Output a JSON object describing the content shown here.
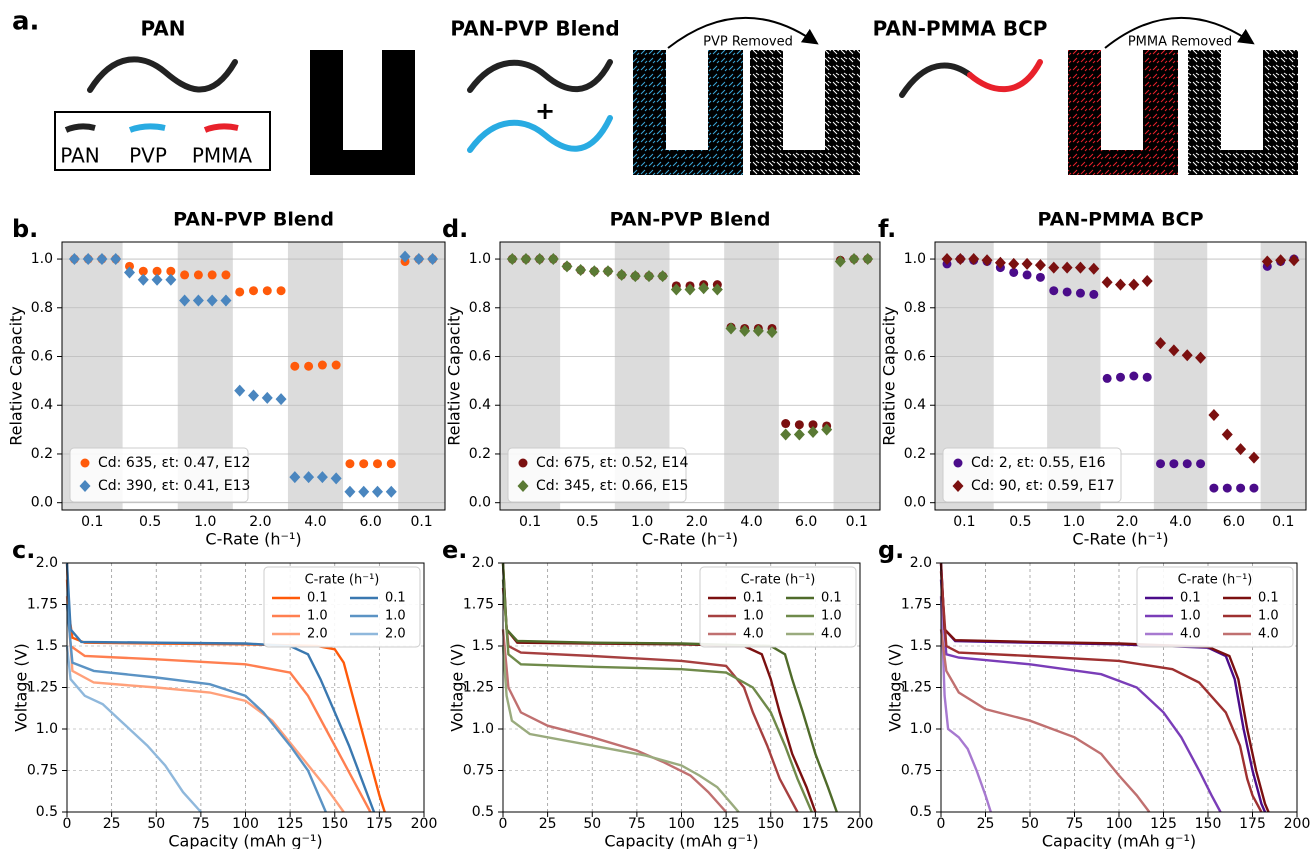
{
  "panel_a": {
    "label": "a.",
    "pan_title": "PAN",
    "blend_title": "PAN-PVP Blend",
    "bcp_title": "PAN-PMMA BCP",
    "plus": "+",
    "pvp_removed": "PVP Removed",
    "pmma_removed": "PMMA Removed",
    "legend": [
      "PAN",
      "PVP",
      "PMMA"
    ]
  },
  "chart_data": [
    {
      "type": "scatter",
      "panel_label": "b.",
      "title": "PAN-PVP Blend",
      "xlabel": "C-Rate (h⁻¹)",
      "ylabel": "Relative Capacity",
      "categories": [
        "0.1",
        null,
        null,
        null,
        "0.5",
        null,
        null,
        null,
        "1.0",
        null,
        null,
        null,
        "2.0",
        null,
        null,
        null,
        "4.0",
        null,
        null,
        null,
        "6.0",
        null,
        null,
        null,
        "0.1",
        null,
        null
      ],
      "series": [
        {
          "name": "Cd: 635, εt: 0.47, E12",
          "color": "#ff5a0a",
          "marker": "circle",
          "values": [
            1.0,
            1.0,
            1.0,
            1.0,
            0.97,
            0.95,
            0.95,
            0.95,
            0.935,
            0.935,
            0.935,
            0.935,
            0.865,
            0.87,
            0.87,
            0.87,
            0.56,
            0.56,
            0.565,
            0.565,
            0.16,
            0.16,
            0.16,
            0.16,
            0.99,
            1.0,
            1.0
          ]
        },
        {
          "name": "Cd: 390, εt: 0.41, E13",
          "color": "#4a86bf",
          "marker": "diamond",
          "values": [
            1.0,
            1.0,
            1.0,
            1.0,
            0.945,
            0.915,
            0.915,
            0.915,
            0.83,
            0.83,
            0.83,
            0.83,
            0.46,
            0.44,
            0.43,
            0.425,
            0.105,
            0.105,
            0.105,
            0.1,
            0.045,
            0.045,
            0.045,
            0.045,
            1.01,
            1.0,
            1.0
          ]
        }
      ],
      "ylim": [
        -0.03,
        1.07
      ],
      "yticks": [
        {
          "value": 0,
          "label": "0.0"
        },
        0.2,
        0.4,
        0.6,
        0.8,
        {
          "value": 1,
          "label": "1.0"
        }
      ],
      "grid": true,
      "shaded_bands": true,
      "legend": "lower left"
    },
    {
      "type": "scatter",
      "panel_label": "d.",
      "title": "PAN-PVP Blend",
      "xlabel": "C-Rate (h⁻¹)",
      "ylabel": "Relative Capacity",
      "categories": [
        "0.1",
        null,
        null,
        null,
        "0.5",
        null,
        null,
        null,
        "1.0",
        null,
        null,
        null,
        "2.0",
        null,
        null,
        null,
        "4.0",
        null,
        null,
        null,
        "6.0",
        null,
        null,
        null,
        "0.1",
        null,
        null
      ],
      "series": [
        {
          "name": "Cd: 675, εt: 0.52, E14",
          "color": "#7b1010",
          "marker": "circle",
          "values": [
            1.0,
            1.0,
            1.0,
            1.0,
            0.97,
            0.955,
            0.95,
            0.95,
            0.935,
            0.93,
            0.93,
            0.93,
            0.89,
            0.89,
            0.895,
            0.895,
            0.72,
            0.715,
            0.715,
            0.715,
            0.325,
            0.32,
            0.32,
            0.315,
            0.995,
            1.0,
            1.0
          ]
        },
        {
          "name": "Cd: 345, εt: 0.66, E15",
          "color": "#5a7a34",
          "marker": "diamond",
          "values": [
            1.0,
            1.0,
            1.0,
            1.0,
            0.97,
            0.955,
            0.95,
            0.95,
            0.935,
            0.93,
            0.93,
            0.93,
            0.875,
            0.875,
            0.88,
            0.875,
            0.715,
            0.705,
            0.705,
            0.7,
            0.28,
            0.28,
            0.29,
            0.3,
            0.99,
            1.0,
            1.0
          ]
        }
      ],
      "ylim": [
        -0.03,
        1.07
      ],
      "yticks": [
        {
          "value": 0,
          "label": "0.0"
        },
        0.2,
        0.4,
        0.6,
        0.8,
        {
          "value": 1,
          "label": "1.0"
        }
      ],
      "grid": true,
      "shaded_bands": true,
      "legend": "lower left"
    },
    {
      "type": "scatter",
      "panel_label": "f.",
      "title": "PAN-PMMA BCP",
      "xlabel": "C-Rate (h⁻¹)",
      "ylabel": "Relative Capacity",
      "categories": [
        "0.1",
        null,
        null,
        null,
        "0.5",
        null,
        null,
        null,
        "1.0",
        null,
        null,
        null,
        "2.0",
        null,
        null,
        null,
        "4.0",
        null,
        null,
        null,
        "6.0",
        null,
        null,
        null,
        "0.1",
        null,
        null
      ],
      "series": [
        {
          "name": "Cd: 2, εt: 0.55, E16",
          "color": "#4b0c8a",
          "marker": "circle",
          "values": [
            0.98,
            1.0,
            0.995,
            0.99,
            0.965,
            0.945,
            0.935,
            0.925,
            0.87,
            0.865,
            0.86,
            0.855,
            0.51,
            0.515,
            0.52,
            0.515,
            0.16,
            0.16,
            0.16,
            0.16,
            0.06,
            0.06,
            0.06,
            0.06,
            0.97,
            0.99,
            1.0
          ]
        },
        {
          "name": "Cd: 90, εt: 0.59, E17",
          "color": "#7b1010",
          "marker": "diamond",
          "values": [
            1.0,
            1.0,
            1.0,
            0.995,
            0.985,
            0.98,
            0.98,
            0.975,
            0.965,
            0.965,
            0.965,
            0.96,
            0.905,
            0.895,
            0.895,
            0.91,
            0.655,
            0.625,
            0.605,
            0.595,
            0.36,
            0.28,
            0.22,
            0.185,
            0.99,
            0.995,
            0.995
          ]
        }
      ],
      "ylim": [
        -0.03,
        1.07
      ],
      "yticks": [
        {
          "value": 0,
          "label": "0.0"
        },
        0.2,
        0.4,
        0.6,
        0.8,
        {
          "value": 1,
          "label": "1.0"
        }
      ],
      "grid": true,
      "shaded_bands": true,
      "legend": "lower left"
    },
    {
      "type": "line",
      "panel_label": "c.",
      "xlabel": "Capacity (mAh g⁻¹)",
      "ylabel": "Voltage (V)",
      "legend_title": "C-rate (h⁻¹)",
      "series": [
        {
          "name": "0.1",
          "color": "#ff5a0a",
          "x": [
            0,
            1,
            3,
            10,
            50,
            100,
            140,
            150,
            155,
            160,
            165,
            170,
            175,
            178
          ],
          "values": [
            2.0,
            1.7,
            1.55,
            1.52,
            1.515,
            1.51,
            1.5,
            1.48,
            1.4,
            1.2,
            1.0,
            0.8,
            0.6,
            0.5
          ]
        },
        {
          "name": "1.0",
          "color": "#ff7f50",
          "x": [
            0,
            2,
            10,
            50,
            100,
            125,
            135,
            145,
            155,
            165,
            170
          ],
          "values": [
            1.9,
            1.5,
            1.44,
            1.42,
            1.39,
            1.34,
            1.2,
            1.0,
            0.8,
            0.6,
            0.5
          ]
        },
        {
          "name": "2.0",
          "color": "#ffa07a",
          "x": [
            0,
            3,
            15,
            50,
            80,
            100,
            115,
            130,
            145,
            155
          ],
          "values": [
            1.8,
            1.35,
            1.28,
            1.25,
            1.22,
            1.17,
            1.05,
            0.85,
            0.65,
            0.5
          ]
        },
        {
          "name": "0.1",
          "color": "#3a78b0",
          "x": [
            0,
            2,
            8,
            50,
            100,
            125,
            135,
            142,
            150,
            158,
            165,
            172
          ],
          "values": [
            2.0,
            1.6,
            1.525,
            1.52,
            1.515,
            1.5,
            1.45,
            1.3,
            1.1,
            0.9,
            0.7,
            0.5
          ]
        },
        {
          "name": "1.0",
          "color": "#5b93c4",
          "x": [
            0,
            3,
            15,
            50,
            80,
            100,
            110,
            125,
            135,
            145
          ],
          "values": [
            1.75,
            1.4,
            1.35,
            1.31,
            1.27,
            1.2,
            1.1,
            0.9,
            0.75,
            0.5
          ]
        },
        {
          "name": "2.0",
          "color": "#8fb8dc",
          "x": [
            0,
            2,
            10,
            20,
            30,
            45,
            55,
            65,
            75
          ],
          "values": [
            1.5,
            1.3,
            1.2,
            1.15,
            1.05,
            0.9,
            0.78,
            0.62,
            0.5
          ]
        }
      ],
      "xlim": [
        0,
        200
      ],
      "xticks": [
        0,
        25,
        50,
        75,
        100,
        125,
        150,
        175,
        200
      ],
      "ylim": [
        0.5,
        2.0
      ],
      "yticks": [
        0.5,
        0.75,
        {
          "value": 1,
          "label": "1.0"
        },
        1.25,
        1.5,
        1.75,
        {
          "value": 2,
          "label": "2.0"
        }
      ],
      "grid": true,
      "legend": "upper right"
    },
    {
      "type": "line",
      "panel_label": "e.",
      "xlabel": "Capacity (mAh g⁻¹)",
      "ylabel": "Voltage (V)",
      "legend_title": "C-rate (h⁻¹)",
      "series": [
        {
          "name": "0.1",
          "color": "#7b1010",
          "x": [
            0,
            2,
            8,
            50,
            100,
            135,
            145,
            150,
            155,
            162,
            170,
            175
          ],
          "values": [
            2.0,
            1.6,
            1.52,
            1.515,
            1.51,
            1.5,
            1.45,
            1.3,
            1.1,
            0.85,
            0.65,
            0.5
          ]
        },
        {
          "name": "1.0",
          "color": "#a64040",
          "x": [
            0,
            3,
            10,
            50,
            100,
            125,
            135,
            140,
            148,
            155,
            165
          ],
          "values": [
            1.85,
            1.5,
            1.46,
            1.44,
            1.41,
            1.38,
            1.25,
            1.1,
            0.9,
            0.7,
            0.5
          ]
        },
        {
          "name": "4.0",
          "color": "#c07070",
          "x": [
            0,
            3,
            10,
            25,
            50,
            75,
            90,
            105,
            115,
            125
          ],
          "values": [
            1.6,
            1.25,
            1.1,
            1.02,
            0.95,
            0.87,
            0.8,
            0.72,
            0.62,
            0.5
          ]
        },
        {
          "name": "0.1",
          "color": "#4f6b2a",
          "x": [
            0,
            2,
            8,
            50,
            100,
            150,
            158,
            162,
            168,
            175,
            182,
            187
          ],
          "values": [
            2.0,
            1.6,
            1.53,
            1.52,
            1.515,
            1.5,
            1.45,
            1.3,
            1.1,
            0.85,
            0.65,
            0.5
          ]
        },
        {
          "name": "1.0",
          "color": "#6f8a4a",
          "x": [
            0,
            3,
            10,
            50,
            100,
            125,
            140,
            150,
            158,
            165,
            173
          ],
          "values": [
            1.9,
            1.45,
            1.39,
            1.375,
            1.36,
            1.34,
            1.25,
            1.1,
            0.9,
            0.7,
            0.5
          ]
        },
        {
          "name": "4.0",
          "color": "#9aab7e",
          "x": [
            0,
            2,
            5,
            15,
            50,
            80,
            100,
            110,
            120,
            128,
            132
          ],
          "values": [
            1.5,
            1.2,
            1.05,
            0.97,
            0.9,
            0.84,
            0.78,
            0.72,
            0.65,
            0.55,
            0.5
          ]
        }
      ],
      "xlim": [
        0,
        200
      ],
      "xticks": [
        0,
        25,
        50,
        75,
        100,
        125,
        150,
        175,
        200
      ],
      "ylim": [
        0.5,
        2.0
      ],
      "yticks": [
        0.5,
        0.75,
        {
          "value": 1,
          "label": "1.0"
        },
        1.25,
        1.5,
        1.75,
        {
          "value": 2,
          "label": "2.0"
        }
      ],
      "grid": true,
      "legend": "upper right"
    },
    {
      "type": "line",
      "panel_label": "g.",
      "xlabel": "Capacity (mAh g⁻¹)",
      "ylabel": "Voltage (V)",
      "legend_title": "C-rate (h⁻¹)",
      "series": [
        {
          "name": "0.1",
          "color": "#4b0c8a",
          "x": [
            0,
            2,
            8,
            50,
            100,
            150,
            160,
            165,
            170,
            175,
            180,
            182
          ],
          "values": [
            2.0,
            1.6,
            1.53,
            1.52,
            1.51,
            1.49,
            1.44,
            1.3,
            1.0,
            0.75,
            0.55,
            0.5
          ]
        },
        {
          "name": "1.0",
          "color": "#7a3db8",
          "x": [
            0,
            3,
            10,
            50,
            90,
            110,
            125,
            135,
            145,
            152,
            157
          ],
          "values": [
            1.9,
            1.45,
            1.43,
            1.39,
            1.33,
            1.25,
            1.1,
            0.95,
            0.75,
            0.6,
            0.5
          ]
        },
        {
          "name": "4.0",
          "color": "#a779d0",
          "x": [
            0,
            2,
            4,
            10,
            15,
            20,
            25,
            28
          ],
          "values": [
            1.8,
            1.2,
            1.0,
            0.95,
            0.88,
            0.75,
            0.6,
            0.5
          ]
        },
        {
          "name": "0.1",
          "color": "#7b1010",
          "x": [
            0,
            2,
            8,
            50,
            100,
            150,
            162,
            167,
            172,
            177,
            182,
            184
          ],
          "values": [
            2.0,
            1.6,
            1.535,
            1.525,
            1.515,
            1.495,
            1.44,
            1.3,
            1.0,
            0.75,
            0.55,
            0.5
          ]
        },
        {
          "name": "1.0",
          "color": "#9e3030",
          "x": [
            0,
            3,
            10,
            50,
            100,
            130,
            145,
            160,
            168,
            172,
            175,
            180
          ],
          "values": [
            1.95,
            1.5,
            1.46,
            1.44,
            1.41,
            1.36,
            1.28,
            1.1,
            0.9,
            0.7,
            0.6,
            0.5
          ]
        },
        {
          "name": "4.0",
          "color": "#c07070",
          "x": [
            0,
            3,
            10,
            25,
            50,
            75,
            90,
            100,
            110,
            117
          ],
          "values": [
            1.6,
            1.35,
            1.22,
            1.12,
            1.05,
            0.95,
            0.85,
            0.72,
            0.6,
            0.5
          ]
        }
      ],
      "xlim": [
        0,
        200
      ],
      "xticks": [
        0,
        25,
        50,
        75,
        100,
        125,
        150,
        175,
        200
      ],
      "ylim": [
        0.5,
        2.0
      ],
      "yticks": [
        0.5,
        0.75,
        {
          "value": 1,
          "label": "1.0"
        },
        1.25,
        1.5,
        1.75,
        {
          "value": 2,
          "label": "2.0"
        }
      ],
      "grid": true,
      "legend": "upper right"
    }
  ]
}
